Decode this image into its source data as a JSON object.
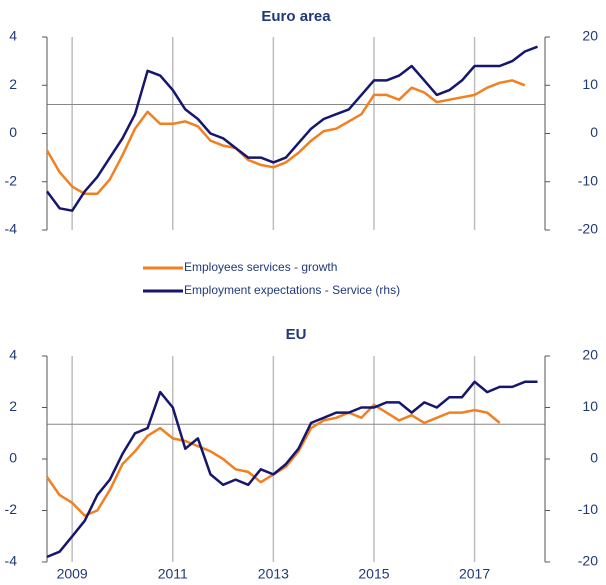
{
  "chart_data": [
    {
      "type": "line",
      "title": "Euro area",
      "x": [
        2008.5,
        2008.75,
        2009,
        2009.25,
        2009.5,
        2009.75,
        2010,
        2010.25,
        2010.5,
        2010.75,
        2011,
        2011.25,
        2011.5,
        2011.75,
        2012,
        2012.25,
        2012.5,
        2012.75,
        2013,
        2013.25,
        2013.5,
        2013.75,
        2014,
        2014.25,
        2014.5,
        2014.75,
        2015,
        2015.25,
        2015.5,
        2015.75,
        2016,
        2016.25,
        2016.5,
        2016.75,
        2017,
        2017.25,
        2017.5,
        2017.75,
        2018,
        2018.25
      ],
      "xlim": [
        2008.5,
        2018.4
      ],
      "xticks": [
        2009,
        2011,
        2013,
        2015,
        2017
      ],
      "ylim": [
        -4,
        4
      ],
      "yticks": [
        4,
        2,
        0,
        -2,
        -4
      ],
      "y2lim": [
        -20,
        20
      ],
      "y2ticks": [
        20,
        10,
        0,
        -10,
        -20
      ],
      "hline": 1.2,
      "grid": true,
      "series": [
        {
          "name": "Employees services - growth",
          "color": "#f28021",
          "values": [
            -0.7,
            -1.6,
            -2.2,
            -2.5,
            -2.5,
            -1.9,
            -0.9,
            0.2,
            0.9,
            0.4,
            0.4,
            0.5,
            0.3,
            -0.3,
            -0.5,
            -0.6,
            -1.1,
            -1.3,
            -1.4,
            -1.2,
            -0.8,
            -0.3,
            0.1,
            0.2,
            0.5,
            0.8,
            1.6,
            1.6,
            1.4,
            1.9,
            1.7,
            1.3,
            1.4,
            1.5,
            1.6,
            1.9,
            2.1,
            2.2,
            2.0,
            null
          ]
        },
        {
          "name": "Employment expectations - Service (rhs)",
          "color": "#16166e",
          "axis": "y2",
          "values": [
            -12,
            -15.5,
            -16,
            -12,
            -9,
            -5,
            -1,
            4,
            13,
            12,
            9,
            5,
            3,
            0,
            -1,
            -3,
            -5,
            -5,
            -6,
            -5,
            -2,
            1,
            3,
            4,
            5,
            8,
            11,
            11,
            12,
            14,
            11,
            8,
            9,
            11,
            14,
            14,
            14,
            15,
            17,
            18
          ]
        }
      ]
    },
    {
      "type": "line",
      "title": "EU",
      "x": [
        2008.5,
        2008.75,
        2009,
        2009.25,
        2009.5,
        2009.75,
        2010,
        2010.25,
        2010.5,
        2010.75,
        2011,
        2011.25,
        2011.5,
        2011.75,
        2012,
        2012.25,
        2012.5,
        2012.75,
        2013,
        2013.25,
        2013.5,
        2013.75,
        2014,
        2014.25,
        2014.5,
        2014.75,
        2015,
        2015.25,
        2015.5,
        2015.75,
        2016,
        2016.25,
        2016.5,
        2016.75,
        2017,
        2017.25,
        2017.5,
        2017.75,
        2018,
        2018.25
      ],
      "xlim": [
        2008.5,
        2018.4
      ],
      "xticks": [
        2009,
        2011,
        2013,
        2015,
        2017
      ],
      "ylim": [
        -4,
        4
      ],
      "yticks": [
        4,
        2,
        0,
        -2,
        -4
      ],
      "y2lim": [
        -20,
        20
      ],
      "y2ticks": [
        20,
        10,
        0,
        -10,
        -20
      ],
      "hline": 1.35,
      "grid": true,
      "series": [
        {
          "color": "#f28021",
          "values": [
            -0.7,
            -1.4,
            -1.7,
            -2.2,
            -2.0,
            -1.2,
            -0.2,
            0.3,
            0.9,
            1.2,
            0.8,
            0.7,
            0.5,
            0.3,
            0.0,
            -0.4,
            -0.5,
            -0.9,
            -0.6,
            -0.3,
            0.3,
            1.2,
            1.5,
            1.6,
            1.8,
            1.6,
            2.1,
            1.8,
            1.5,
            1.7,
            1.4,
            1.6,
            1.8,
            1.8,
            1.9,
            1.8,
            1.4,
            null,
            null,
            null
          ]
        },
        {
          "color": "#16166e",
          "axis": "y2",
          "values": [
            -19,
            -18,
            -15,
            -12,
            -7,
            -4,
            1,
            5,
            6,
            13,
            10,
            2,
            4,
            -3,
            -5,
            -4,
            -5,
            -2,
            -3,
            -1,
            2,
            7,
            8,
            9,
            9,
            10,
            10,
            11,
            11,
            9,
            11,
            10,
            12,
            12,
            15,
            13,
            14,
            14,
            15,
            15
          ]
        }
      ]
    }
  ]
}
